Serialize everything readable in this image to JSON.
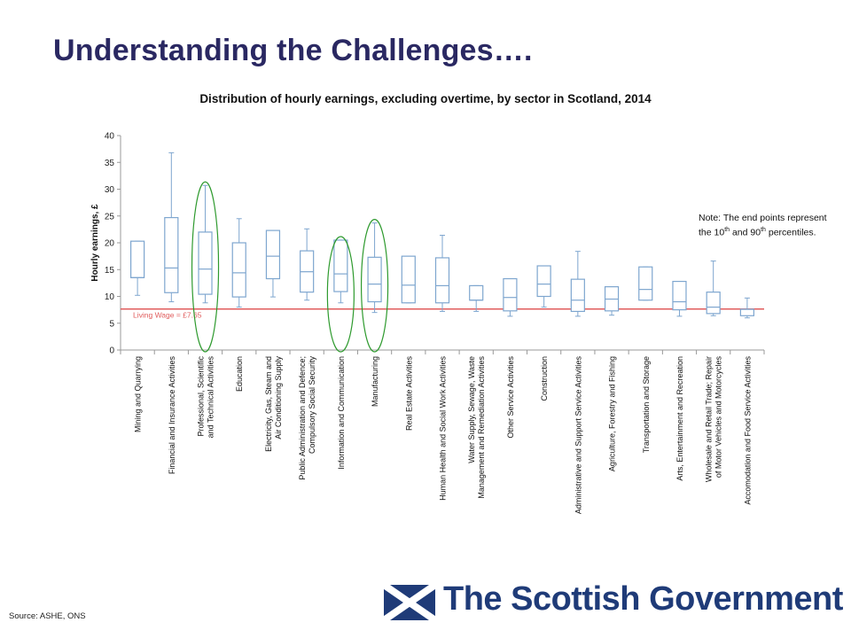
{
  "slide": {
    "title": "Understanding the Challenges….",
    "source": "Source: ASHE, ONS",
    "note": {
      "prefix": "Note: The  end points represent the 10",
      "sup1": "th",
      "mid": " and 90",
      "sup2": "th",
      "suffix": " percentiles."
    },
    "logo_text": "The Scottish Government"
  },
  "colors": {
    "title": "#2a2862",
    "box": "#7ea6cf",
    "living_wage_line": "#e05c5c",
    "highlight_ellipse": "#2e9a2e",
    "axis": "#999999",
    "logo_blue": "#1f3b78"
  },
  "chart_data": {
    "type": "boxplot",
    "title": "Distribution of hourly earnings, excluding overtime, by sector in Scotland, 2014",
    "xlabel": "",
    "ylabel": "Hourly earnings, £",
    "ylim": [
      0,
      40
    ],
    "yticks": [
      0,
      5,
      10,
      15,
      20,
      25,
      30,
      35,
      40
    ],
    "grid": false,
    "reference_line": {
      "label": "Living Wage = £7.65",
      "value": 7.65
    },
    "highlighted_categories": [
      "Professional, Scientific and Technical Activities",
      "Information and Communication",
      "Manufacturing"
    ],
    "categories": [
      {
        "name": "Mining and Quarrying",
        "p10": 10.2,
        "q1": 13.5,
        "median": 13.5,
        "q3": 20.3,
        "p90": 20.3
      },
      {
        "name": "Financial and Insurance Activities",
        "p10": 9.0,
        "q1": 10.7,
        "median": 15.3,
        "q3": 24.7,
        "p90": 36.8
      },
      {
        "name": "Professional, Scientific and Technical Activities",
        "p10": 8.8,
        "q1": 10.4,
        "median": 15.1,
        "q3": 22.0,
        "p90": 30.7
      },
      {
        "name": "Education",
        "p10": 8.0,
        "q1": 9.9,
        "median": 14.4,
        "q3": 20.0,
        "p90": 24.5
      },
      {
        "name": "Electricity, Gas, Steam and Air Conditioning Supply",
        "p10": 9.9,
        "q1": 13.3,
        "median": 17.5,
        "q3": 22.3,
        "p90": 22.3
      },
      {
        "name": "Public Administration and Defence; Compulsory Social Security",
        "p10": 9.3,
        "q1": 10.8,
        "median": 14.6,
        "q3": 18.5,
        "p90": 22.6
      },
      {
        "name": "Information and Communication",
        "p10": 8.8,
        "q1": 10.9,
        "median": 14.2,
        "q3": 20.5,
        "p90": 20.5
      },
      {
        "name": "Manufacturing",
        "p10": 7.0,
        "q1": 9.0,
        "median": 12.3,
        "q3": 17.3,
        "p90": 23.7
      },
      {
        "name": "Real Estate Activities",
        "p10": 8.8,
        "q1": 8.8,
        "median": 12.1,
        "q3": 17.5,
        "p90": 17.5
      },
      {
        "name": "Human Health and Social Work Activities",
        "p10": 7.2,
        "q1": 8.8,
        "median": 12.0,
        "q3": 17.2,
        "p90": 21.4
      },
      {
        "name": "Water Supply, Sewage, Waste Management and Remediation Activities",
        "p10": 7.2,
        "q1": 9.3,
        "median": 9.3,
        "q3": 12.0,
        "p90": 12.0
      },
      {
        "name": "Other Service Activities",
        "p10": 6.3,
        "q1": 7.3,
        "median": 9.8,
        "q3": 13.3,
        "p90": 13.3
      },
      {
        "name": "Construction",
        "p10": 8.0,
        "q1": 10.0,
        "median": 12.3,
        "q3": 15.7,
        "p90": 15.7
      },
      {
        "name": "Administrative and Support Service Activities",
        "p10": 6.3,
        "q1": 7.2,
        "median": 9.3,
        "q3": 13.2,
        "p90": 18.4
      },
      {
        "name": "Agriculture, Forestry and Fishing",
        "p10": 6.5,
        "q1": 7.3,
        "median": 9.5,
        "q3": 11.8,
        "p90": 11.8
      },
      {
        "name": "Transportation and Storage",
        "p10": 9.3,
        "q1": 9.3,
        "median": 11.3,
        "q3": 15.5,
        "p90": 15.5
      },
      {
        "name": "Arts, Entertainment and Recreation",
        "p10": 6.3,
        "q1": 7.5,
        "median": 9.0,
        "q3": 12.8,
        "p90": 12.8
      },
      {
        "name": "Wholesale and Retail Trade; Repair of Motor Vehicles and Motorcycles",
        "p10": 6.4,
        "q1": 6.8,
        "median": 8.0,
        "q3": 10.8,
        "p90": 16.6
      },
      {
        "name": "Accomodation and Food Service Activities",
        "p10": 6.0,
        "q1": 6.4,
        "median": 7.6,
        "q3": 7.6,
        "p90": 9.7
      }
    ]
  }
}
